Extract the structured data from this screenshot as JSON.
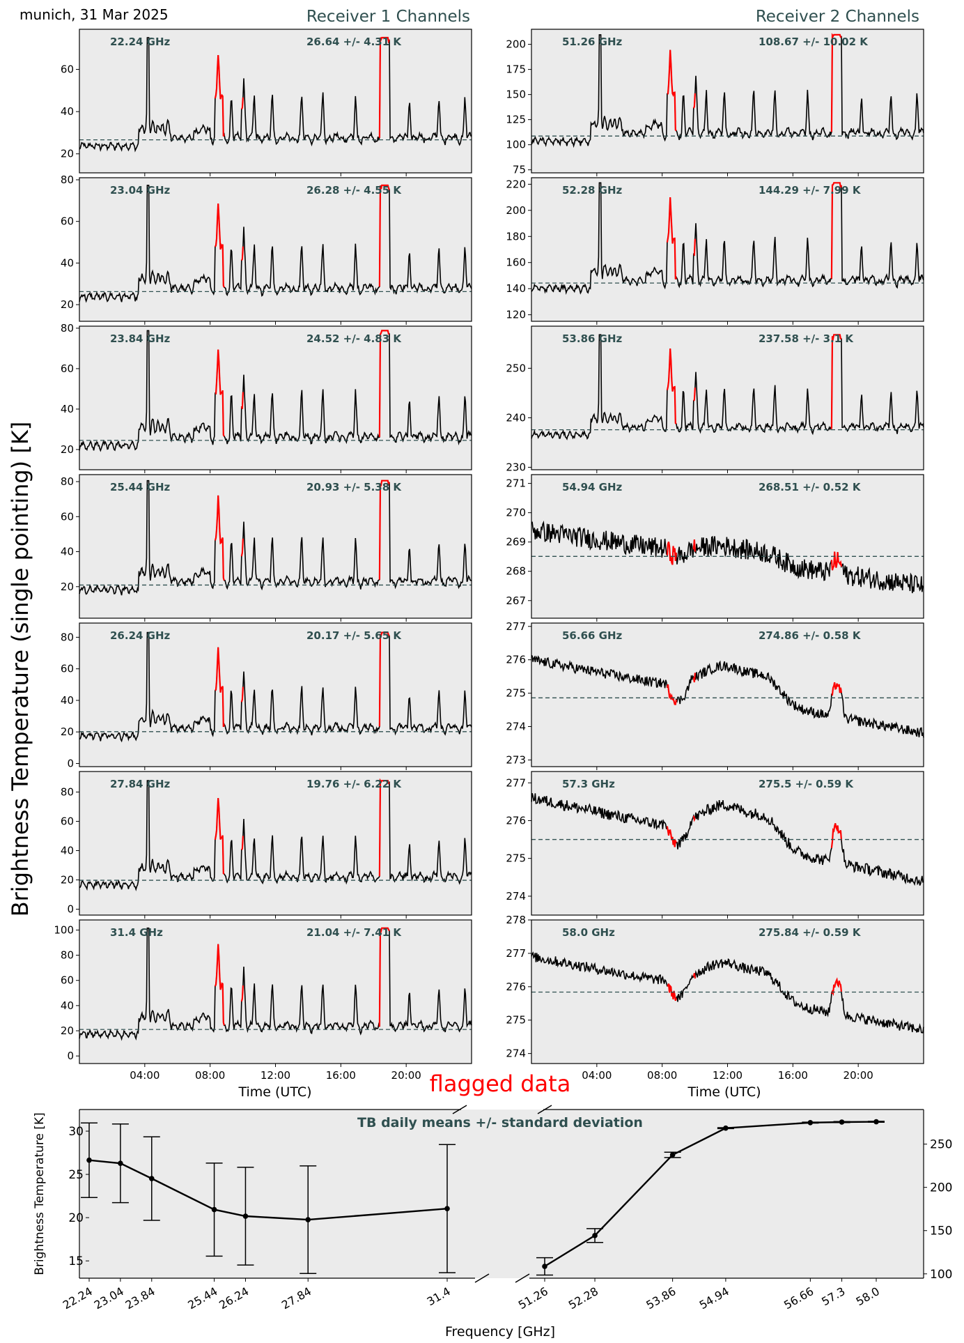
{
  "header": {
    "site_date": "munich, 31 Mar 2025",
    "receiver1_title": "Receiver 1 Channels",
    "receiver2_title": "Receiver 2 Channels",
    "y_label": "Brightness Temperature (single pointing) [K]",
    "x_label": "Time (UTC)",
    "flag_note": "flagged data"
  },
  "colors": {
    "panel_bg": "#ebebeb",
    "series": "#000000",
    "flagged": "#ff0000",
    "mean_line": "#2f4f4f",
    "label_text": "#2f4f4f"
  },
  "chart_data": [
    {
      "type": "line",
      "title": "Receiver 1 Channels",
      "xlabel": "Time (UTC)",
      "xticks": [
        "04:00",
        "08:00",
        "12:00",
        "16:00",
        "20:00"
      ],
      "xlim_hours": [
        0,
        24
      ],
      "profile": "humidity",
      "channels": [
        {
          "freq": "22.24 GHz",
          "stat": "26.64 +/- 4.31 K",
          "mean": 26.64,
          "std": 4.31,
          "ylim": [
            11,
            79
          ],
          "yticks": [
            "20",
            "40",
            "60"
          ],
          "ytick_values": [
            20,
            40,
            60
          ],
          "base": 21,
          "peak": 68
        },
        {
          "freq": "23.04 GHz",
          "stat": "26.28 +/- 4.55 K",
          "mean": 26.28,
          "std": 4.55,
          "ylim": [
            12,
            81
          ],
          "yticks": [
            "20",
            "40",
            "60",
            "80"
          ],
          "ytick_values": [
            20,
            40,
            60,
            80
          ],
          "base": 21,
          "peak": 70
        },
        {
          "freq": "23.84 GHz",
          "stat": "24.52 +/- 4.83 K",
          "mean": 24.52,
          "std": 4.83,
          "ylim": [
            10,
            81
          ],
          "yticks": [
            "20",
            "40",
            "60",
            "80"
          ],
          "ytick_values": [
            20,
            40,
            60,
            80
          ],
          "base": 19,
          "peak": 71
        },
        {
          "freq": "25.44 GHz",
          "stat": "20.93 +/- 5.38 K",
          "mean": 20.93,
          "std": 5.38,
          "ylim": [
            2,
            84
          ],
          "yticks": [
            "20",
            "40",
            "60",
            "80"
          ],
          "ytick_values": [
            20,
            40,
            60,
            80
          ],
          "base": 15,
          "peak": 72
        },
        {
          "freq": "26.24 GHz",
          "stat": "20.17 +/- 5.65 K",
          "mean": 20.17,
          "std": 5.65,
          "ylim": [
            -2,
            89
          ],
          "yticks": [
            "0",
            "20",
            "40",
            "60",
            "80"
          ],
          "ytick_values": [
            0,
            20,
            40,
            60,
            80
          ],
          "base": 14,
          "peak": 74
        },
        {
          "freq": "27.84 GHz",
          "stat": "19.76 +/- 6.22 K",
          "mean": 19.76,
          "std": 6.22,
          "ylim": [
            -4,
            94
          ],
          "yticks": [
            "0",
            "20",
            "40",
            "60",
            "80"
          ],
          "ytick_values": [
            0,
            20,
            40,
            60,
            80
          ],
          "base": 13,
          "peak": 78
        },
        {
          "freq": "31.4 GHz",
          "stat": "21.04 +/- 7.41 K",
          "mean": 21.04,
          "std": 7.41,
          "ylim": [
            -6,
            108
          ],
          "yticks": [
            "0",
            "20",
            "40",
            "60",
            "80",
            "100"
          ],
          "ytick_values": [
            0,
            20,
            40,
            60,
            80,
            100
          ],
          "base": 13,
          "peak": 90
        }
      ]
    },
    {
      "type": "line",
      "title": "Receiver 2 Channels",
      "xlabel": "Time (UTC)",
      "xticks": [
        "04:00",
        "08:00",
        "12:00",
        "16:00",
        "20:00"
      ],
      "xlim_hours": [
        0,
        24
      ],
      "channels": [
        {
          "freq": "51.26 GHz",
          "stat": "108.67 +/- 10.02 K",
          "mean": 108.67,
          "std": 10.02,
          "ylim": [
            72,
            215
          ],
          "yticks": [
            "75",
            "100",
            "125",
            "150",
            "175",
            "200"
          ],
          "ytick_values": [
            75,
            100,
            125,
            150,
            175,
            200
          ],
          "profile": "humidity",
          "base": 98,
          "peak": 195
        },
        {
          "freq": "52.28 GHz",
          "stat": "144.29 +/- 7.99 K",
          "mean": 144.29,
          "std": 7.99,
          "ylim": [
            115,
            225
          ],
          "yticks": [
            "120",
            "140",
            "160",
            "180",
            "200",
            "220"
          ],
          "ytick_values": [
            120,
            140,
            160,
            180,
            200,
            220
          ],
          "profile": "humidity",
          "base": 136,
          "peak": 210
        },
        {
          "freq": "53.86 GHz",
          "stat": "237.58 +/- 3.1 K",
          "mean": 237.58,
          "std": 3.1,
          "ylim": [
            229.5,
            258.5
          ],
          "yticks": [
            "230",
            "240",
            "250"
          ],
          "ytick_values": [
            230,
            240,
            250
          ],
          "profile": "humidity",
          "base": 235.5,
          "peak": 254
        },
        {
          "freq": "54.94 GHz",
          "stat": "268.51 +/- 0.52 K",
          "mean": 268.51,
          "std": 0.52,
          "ylim": [
            266.4,
            271.3
          ],
          "yticks": [
            "267",
            "268",
            "269",
            "270",
            "271"
          ],
          "ytick_values": [
            267,
            268,
            269,
            270,
            271
          ],
          "profile": "temperature",
          "start": 269.4,
          "end": 267.5,
          "bump": 0.4,
          "noise": 0.35
        },
        {
          "freq": "56.66 GHz",
          "stat": "274.86 +/- 0.58 K",
          "mean": 274.86,
          "std": 0.58,
          "ylim": [
            272.8,
            277.1
          ],
          "yticks": [
            "273",
            "274",
            "275",
            "276",
            "277"
          ],
          "ytick_values": [
            273,
            274,
            275,
            276,
            277
          ],
          "profile": "temperature",
          "start": 276.0,
          "end": 273.8,
          "bump": 0.9,
          "noise": 0.15
        },
        {
          "freq": "57.3 GHz",
          "stat": "275.5 +/- 0.59 K",
          "mean": 275.5,
          "std": 0.59,
          "ylim": [
            273.5,
            277.3
          ],
          "yticks": [
            "274",
            "275",
            "276",
            "277"
          ],
          "ytick_values": [
            274,
            275,
            276,
            277
          ],
          "profile": "temperature",
          "start": 276.6,
          "end": 274.4,
          "bump": 0.9,
          "noise": 0.15
        },
        {
          "freq": "58.0 GHz",
          "stat": "275.84 +/- 0.59 K",
          "mean": 275.84,
          "std": 0.59,
          "ylim": [
            273.7,
            278.0
          ],
          "yticks": [
            "274",
            "275",
            "276",
            "277",
            "278"
          ],
          "ytick_values": [
            274,
            275,
            276,
            277,
            278
          ],
          "profile": "temperature",
          "start": 276.9,
          "end": 274.7,
          "bump": 0.9,
          "noise": 0.15
        }
      ]
    },
    {
      "type": "line",
      "title": "TB daily means +/- standard deviation",
      "xlabel": "Frequency [GHz]",
      "ylabel": "Brightness Temperature [K]",
      "left": {
        "x": [
          22.24,
          23.04,
          23.84,
          25.44,
          26.24,
          27.84,
          31.4
        ],
        "xticks": [
          "22.24",
          "23.04",
          "23.84",
          "25.44",
          "26.24",
          "27.84",
          "31.4"
        ],
        "y": [
          26.64,
          26.28,
          24.52,
          20.93,
          20.17,
          19.76,
          21.04
        ],
        "err": [
          4.31,
          4.55,
          4.83,
          5.38,
          5.65,
          6.22,
          7.41
        ],
        "ylim": [
          13,
          32.5
        ],
        "yticks": [
          "15",
          "20",
          "25",
          "30"
        ],
        "ytick_values": [
          15,
          20,
          25,
          30
        ]
      },
      "right": {
        "x": [
          51.26,
          52.28,
          53.86,
          54.94,
          56.66,
          57.3,
          58.0
        ],
        "xticks": [
          "51.26",
          "52.28",
          "53.86",
          "54.94",
          "56.66",
          "57.3",
          "58.0"
        ],
        "y": [
          108.67,
          144.29,
          237.58,
          268.51,
          274.86,
          275.5,
          275.84
        ],
        "err": [
          10.02,
          7.99,
          3.1,
          0.52,
          0.58,
          0.59,
          0.59
        ],
        "ylim": [
          95,
          290
        ],
        "yticks": [
          "100",
          "150",
          "200",
          "250"
        ],
        "ytick_values": [
          100,
          150,
          200,
          250
        ]
      }
    }
  ]
}
